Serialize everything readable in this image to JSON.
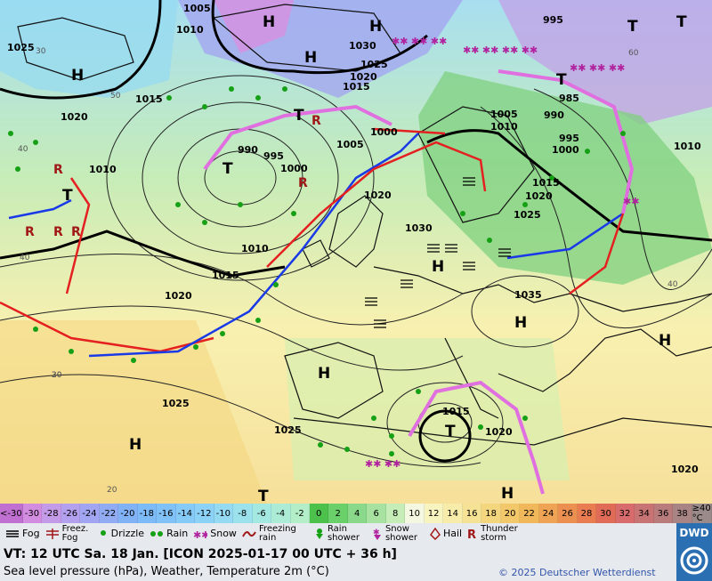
{
  "scale": {
    "items": [
      {
        "label": "<-30",
        "color": "#c070d0"
      },
      {
        "label": "-30",
        "color": "#d28ce0"
      },
      {
        "label": "-28",
        "color": "#c49be8"
      },
      {
        "label": "-26",
        "color": "#b3a0ee"
      },
      {
        "label": "-24",
        "color": "#a2a6f2"
      },
      {
        "label": "-22",
        "color": "#92acf4"
      },
      {
        "label": "-20",
        "color": "#82b2f6"
      },
      {
        "label": "-18",
        "color": "#7cbaf8"
      },
      {
        "label": "-16",
        "color": "#80c2f8"
      },
      {
        "label": "-14",
        "color": "#86caf8"
      },
      {
        "label": "-12",
        "color": "#8cd2f6"
      },
      {
        "label": "-10",
        "color": "#94daf2"
      },
      {
        "label": "-8",
        "color": "#9ce2ec"
      },
      {
        "label": "-6",
        "color": "#a4e8e2"
      },
      {
        "label": "-4",
        "color": "#acecd6"
      },
      {
        "label": "-2",
        "color": "#b4eec8"
      },
      {
        "label": "0",
        "color": "#4cc24c"
      },
      {
        "label": "2",
        "color": "#6ad06a"
      },
      {
        "label": "4",
        "color": "#8ad88a"
      },
      {
        "label": "6",
        "color": "#a8e2a0"
      },
      {
        "label": "8",
        "color": "#c6ecb8"
      },
      {
        "label": "10",
        "color": "#f4f8e0"
      },
      {
        "label": "12",
        "color": "#f8f4c0"
      },
      {
        "label": "14",
        "color": "#f8ecaa"
      },
      {
        "label": "16",
        "color": "#f6e294"
      },
      {
        "label": "18",
        "color": "#f4d67e"
      },
      {
        "label": "20",
        "color": "#f2c86a"
      },
      {
        "label": "22",
        "color": "#f0b85a"
      },
      {
        "label": "24",
        "color": "#eea454"
      },
      {
        "label": "26",
        "color": "#ec9052"
      },
      {
        "label": "28",
        "color": "#ea7c52"
      },
      {
        "label": "30",
        "color": "#e06c58"
      },
      {
        "label": "32",
        "color": "#d86c6c"
      },
      {
        "label": "34",
        "color": "#c87474"
      },
      {
        "label": "36",
        "color": "#b87c7c"
      },
      {
        "label": "38",
        "color": "#a88484"
      },
      {
        "label": "≥40 °C",
        "color": "#9a8a8a"
      }
    ]
  },
  "legend": {
    "fog": "Fog",
    "freezing_fog": "Freez. Fog",
    "drizzle": "Drizzle",
    "rain": "Rain",
    "snow": "Snow",
    "freezing_rain": "Freezing rain",
    "rain_shower": "Rain shower",
    "snow_shower": "Snow shower",
    "hail": "Hail",
    "thunderstorm": "Thunder storm"
  },
  "info": {
    "valid_time": "VT: 12 UTC Sa.   18 Jan. [ICON 2025-01-17   00 UTC + 36 h]",
    "subtitle": "Sea level pressure (hPa), Weather, Temperature 2m (°C)",
    "copyright": "© 2025 Deutscher Wetterdienst",
    "logo": "DWD"
  },
  "map": {
    "pressure_labels": [
      "1005",
      "1010",
      "1025",
      "995",
      "1030",
      "1025",
      "1020",
      "1015",
      "1015",
      "1020",
      "990",
      "995",
      "1000",
      "1005",
      "1010",
      "1000",
      "1005",
      "1010",
      "985",
      "990",
      "995",
      "1000",
      "1010",
      "1020",
      "1015",
      "1020",
      "1025",
      "1030",
      "1010",
      "1015",
      "1020",
      "1035",
      "1025",
      "1015",
      "1025",
      "1020",
      "1020"
    ],
    "centers": [
      "H",
      "H",
      "H",
      "H",
      "T",
      "T",
      "T",
      "T",
      "T",
      "T",
      "H",
      "H",
      "H",
      "H",
      "T",
      "H",
      "H",
      "T"
    ],
    "temp_labels": [
      "30",
      "40",
      "50",
      "40",
      "20",
      "30",
      "40",
      "20",
      "60"
    ]
  },
  "colors": {
    "warm_front": "#e42020",
    "cold_front": "#1a3ae8",
    "occlusion": "#e070e0"
  }
}
